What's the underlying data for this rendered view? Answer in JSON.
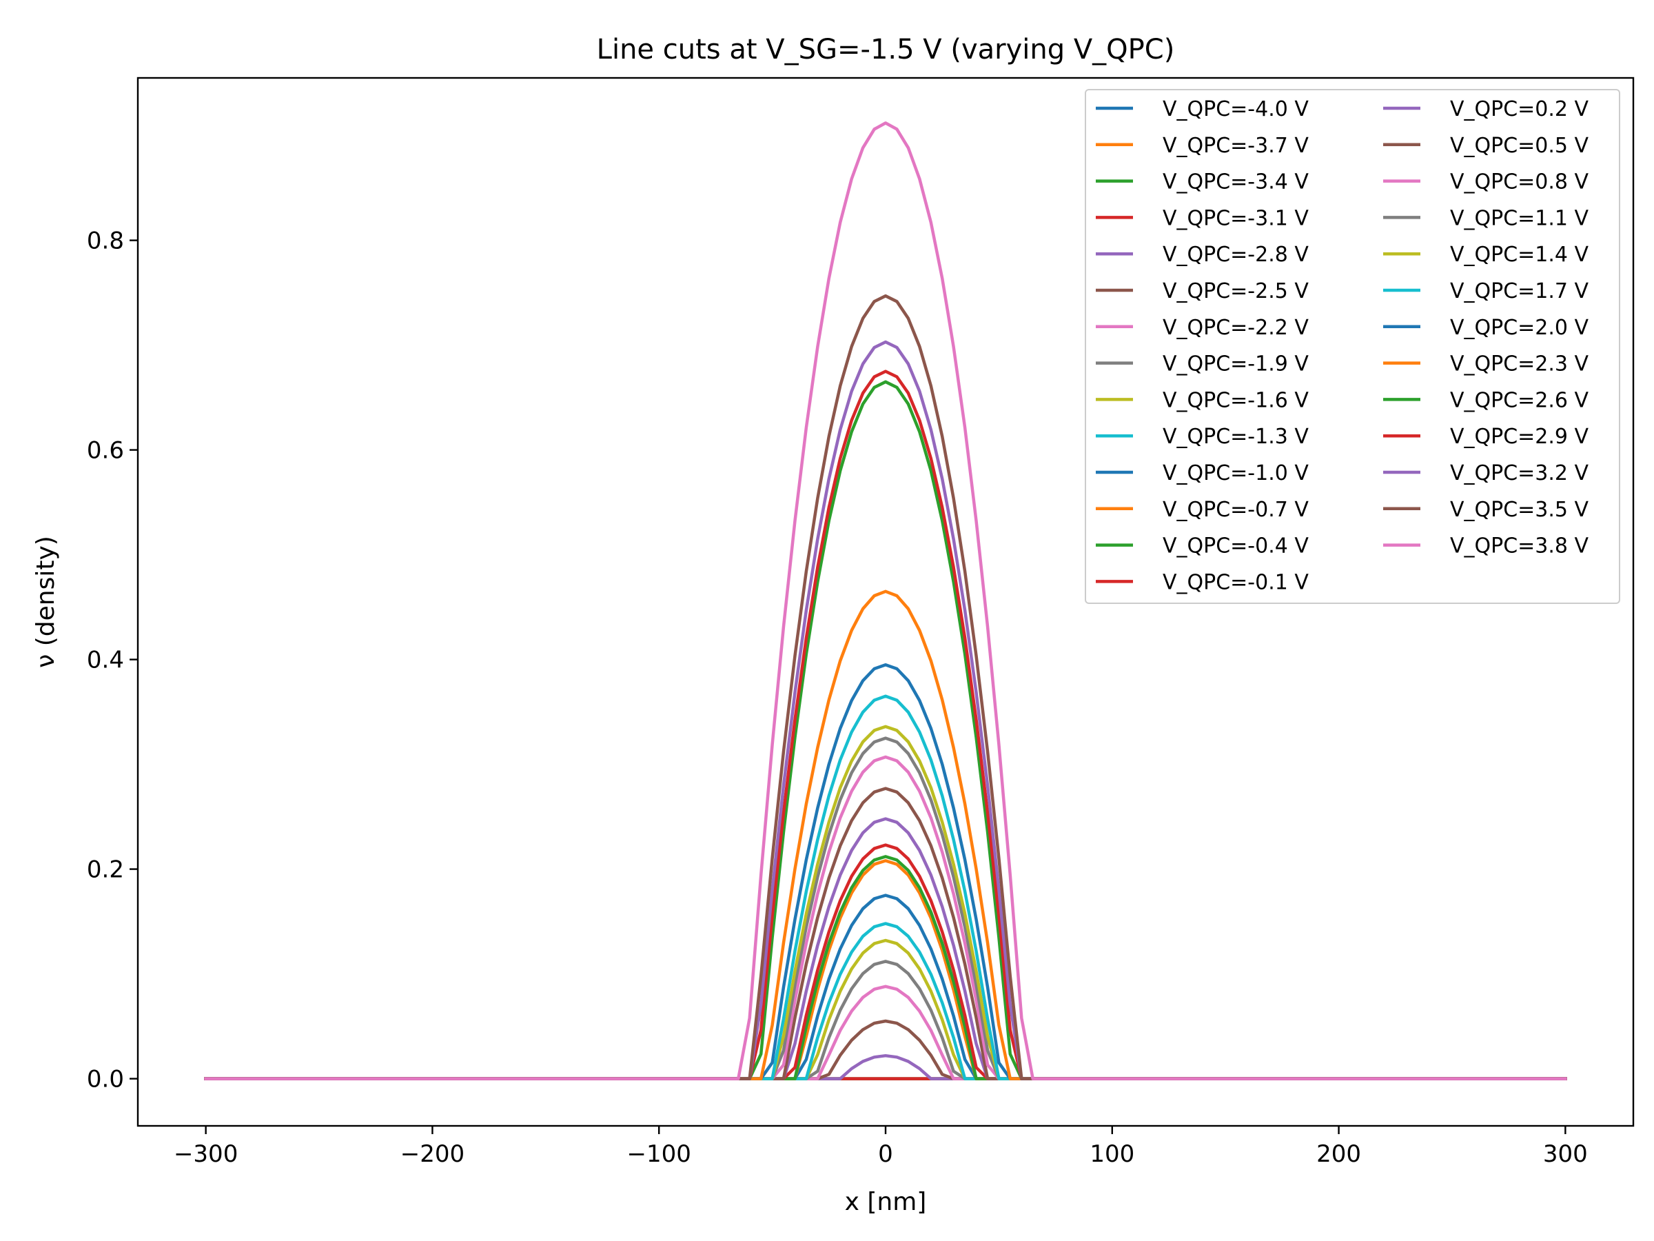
{
  "chart_data": {
    "type": "line",
    "title": "Line cuts at V_SG=-1.5 V (varying V_QPC)",
    "xlabel": "x [nm]",
    "ylabel": "ν (density)",
    "xlim": [
      -330,
      330
    ],
    "ylim": [
      -0.045,
      0.955
    ],
    "xticks": [
      -300,
      -200,
      -100,
      0,
      100,
      200,
      300
    ],
    "xtick_labels": [
      "−300",
      "−200",
      "−100",
      "0",
      "100",
      "200",
      "300"
    ],
    "yticks": [
      0.0,
      0.2,
      0.4,
      0.6,
      0.8
    ],
    "ytick_labels": [
      "0.0",
      "0.2",
      "0.4",
      "0.6",
      "0.8"
    ],
    "grid": false,
    "legend": {
      "placement": "upper right",
      "columns": 2
    },
    "x": [
      -300,
      -75,
      -65,
      -60,
      -55,
      -50,
      -45,
      -40,
      -35,
      -30,
      -25,
      -20,
      -15,
      -10,
      -5,
      0,
      5,
      10,
      15,
      20,
      25,
      30,
      35,
      40,
      45,
      50,
      55,
      60,
      65,
      75,
      300
    ],
    "series": [
      {
        "name": "V_QPC=-4.0 V",
        "color": "#1f77b4",
        "peak": 0.0,
        "halfwidth": 0
      },
      {
        "name": "V_QPC=-3.7 V",
        "color": "#ff7f0e",
        "peak": 0.0,
        "halfwidth": 0
      },
      {
        "name": "V_QPC=-3.4 V",
        "color": "#2ca02c",
        "peak": 0.0,
        "halfwidth": 0
      },
      {
        "name": "V_QPC=-3.1 V",
        "color": "#d62728",
        "peak": 0.0,
        "halfwidth": 0
      },
      {
        "name": "V_QPC=-2.8 V",
        "color": "#9467bd",
        "peak": 0.022,
        "halfwidth": 20
      },
      {
        "name": "V_QPC=-2.5 V",
        "color": "#8c564b",
        "peak": 0.055,
        "halfwidth": 26
      },
      {
        "name": "V_QPC=-2.2 V",
        "color": "#e377c2",
        "peak": 0.088,
        "halfwidth": 29
      },
      {
        "name": "V_QPC=-1.9 V",
        "color": "#7f7f7f",
        "peak": 0.112,
        "halfwidth": 31
      },
      {
        "name": "V_QPC=-1.6 V",
        "color": "#bcbd22",
        "peak": 0.132,
        "halfwidth": 33
      },
      {
        "name": "V_QPC=-1.3 V",
        "color": "#17becf",
        "peak": 0.148,
        "halfwidth": 35
      },
      {
        "name": "V_QPC=-1.0 V",
        "color": "#1f77b4",
        "peak": 0.175,
        "halfwidth": 37
      },
      {
        "name": "V_QPC=-0.7 V",
        "color": "#ff7f0e",
        "peak": 0.208,
        "halfwidth": 39
      },
      {
        "name": "V_QPC=-0.4 V",
        "color": "#2ca02c",
        "peak": 0.212,
        "halfwidth": 40
      },
      {
        "name": "V_QPC=-0.1 V",
        "color": "#d62728",
        "peak": 0.223,
        "halfwidth": 41
      },
      {
        "name": "V_QPC=0.2 V",
        "color": "#9467bd",
        "peak": 0.248,
        "halfwidth": 43
      },
      {
        "name": "V_QPC=0.5 V",
        "color": "#8c564b",
        "peak": 0.277,
        "halfwidth": 45
      },
      {
        "name": "V_QPC=0.8 V",
        "color": "#e377c2",
        "peak": 0.307,
        "halfwidth": 46
      },
      {
        "name": "V_QPC=1.1 V",
        "color": "#7f7f7f",
        "peak": 0.325,
        "halfwidth": 47
      },
      {
        "name": "V_QPC=1.4 V",
        "color": "#bcbd22",
        "peak": 0.336,
        "halfwidth": 48
      },
      {
        "name": "V_QPC=1.7 V",
        "color": "#17becf",
        "peak": 0.365,
        "halfwidth": 49
      },
      {
        "name": "V_QPC=2.0 V",
        "color": "#1f77b4",
        "peak": 0.395,
        "halfwidth": 51
      },
      {
        "name": "V_QPC=2.3 V",
        "color": "#ff7f0e",
        "peak": 0.465,
        "halfwidth": 53
      },
      {
        "name": "V_QPC=2.6 V",
        "color": "#2ca02c",
        "peak": 0.665,
        "halfwidth": 56
      },
      {
        "name": "V_QPC=2.9 V",
        "color": "#d62728",
        "peak": 0.675,
        "halfwidth": 57
      },
      {
        "name": "V_QPC=3.2 V",
        "color": "#9467bd",
        "peak": 0.703,
        "halfwidth": 58
      },
      {
        "name": "V_QPC=3.5 V",
        "color": "#8c564b",
        "peak": 0.747,
        "halfwidth": 59
      },
      {
        "name": "V_QPC=3.8 V",
        "color": "#e377c2",
        "peak": 0.912,
        "halfwidth": 62
      }
    ]
  }
}
